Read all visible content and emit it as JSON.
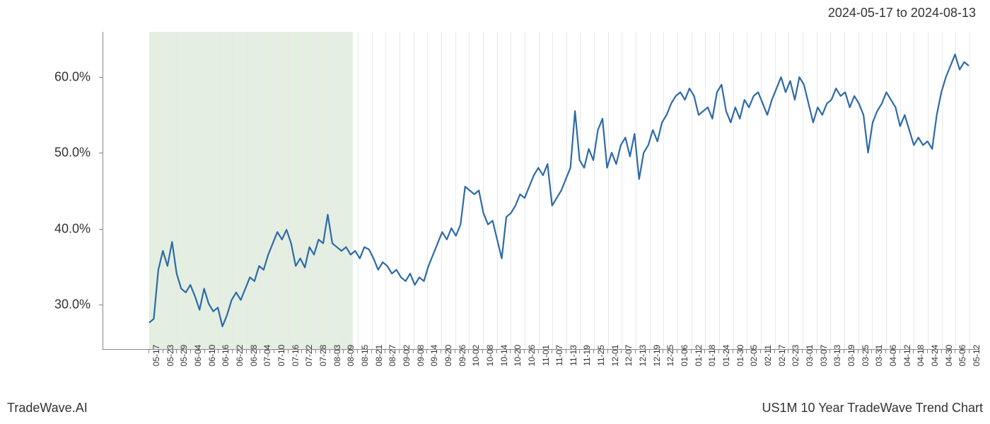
{
  "header": {
    "date_range": "2024-05-17 to 2024-08-13"
  },
  "footer": {
    "left": "TradeWave.AI",
    "right": "US1M 10 Year TradeWave Trend Chart"
  },
  "chart": {
    "type": "line",
    "background_color": "#ffffff",
    "grid_color": "#e8e8e8",
    "axis_color": "#888888",
    "line_color": "#2e6aa8",
    "line_width": 2.2,
    "highlight_band": {
      "color": "#d9e8d4",
      "opacity": 0.7,
      "x_start": "05-17",
      "x_end": "08-13"
    },
    "title_fontsize": 18,
    "tick_fontsize_y": 18,
    "tick_fontsize_x": 12,
    "ylim": [
      24,
      66
    ],
    "yticks": [
      30.0,
      40.0,
      50.0,
      60.0
    ],
    "ytick_labels": [
      "30.0%",
      "40.0%",
      "50.0%",
      "60.0%"
    ],
    "xticks": [
      "05-17",
      "05-23",
      "05-29",
      "06-04",
      "06-10",
      "06-16",
      "06-22",
      "06-28",
      "07-04",
      "07-10",
      "07-16",
      "07-22",
      "07-28",
      "08-03",
      "08-09",
      "08-15",
      "08-21",
      "08-27",
      "09-02",
      "09-08",
      "09-14",
      "09-20",
      "09-26",
      "10-02",
      "10-08",
      "10-14",
      "10-20",
      "10-26",
      "11-01",
      "11-07",
      "11-13",
      "11-19",
      "11-25",
      "12-01",
      "12-07",
      "12-13",
      "12-19",
      "12-25",
      "01-06",
      "01-12",
      "01-18",
      "01-24",
      "01-30",
      "02-05",
      "02-11",
      "02-17",
      "02-23",
      "03-01",
      "03-07",
      "03-13",
      "03-19",
      "03-25",
      "03-31",
      "04-06",
      "04-12",
      "04-18",
      "04-24",
      "04-30",
      "05-06",
      "05-12"
    ],
    "values": [
      27.5,
      28.0,
      34.5,
      37.0,
      35.0,
      38.2,
      34.0,
      32.0,
      31.5,
      32.5,
      31.0,
      29.2,
      32.0,
      30.0,
      29.0,
      29.5,
      27.0,
      28.5,
      30.5,
      31.5,
      30.5,
      32.0,
      33.5,
      33.0,
      35.0,
      34.5,
      36.5,
      38.0,
      39.5,
      38.5,
      39.8,
      38.0,
      35.0,
      36.0,
      34.8,
      37.5,
      36.5,
      38.5,
      38.0,
      41.8,
      38.0,
      37.5,
      37.0,
      37.5,
      36.5,
      37.0,
      36.0,
      37.5,
      37.2,
      36.0,
      34.5,
      35.5,
      35.0,
      34.0,
      34.5,
      33.5,
      33.0,
      34.0,
      32.5,
      33.5,
      33.0,
      35.0,
      36.5,
      38.0,
      39.5,
      38.5,
      40.0,
      39.0,
      40.5,
      45.5,
      45.0,
      44.5,
      45.0,
      42.0,
      40.5,
      41.0,
      38.5,
      36.0,
      41.5,
      42.0,
      43.0,
      44.5,
      44.0,
      45.5,
      47.0,
      48.0,
      47.0,
      48.5,
      43.0,
      44.0,
      45.0,
      46.5,
      48.0,
      55.5,
      49.0,
      48.0,
      50.5,
      49.0,
      53.0,
      54.5,
      48.0,
      50.0,
      48.5,
      51.0,
      52.0,
      49.5,
      52.5,
      46.5,
      50.0,
      51.0,
      53.0,
      51.5,
      54.0,
      55.0,
      56.5,
      57.5,
      58.0,
      57.0,
      58.5,
      57.5,
      55.0,
      55.5,
      56.0,
      54.5,
      58.0,
      59.0,
      55.5,
      54.0,
      56.0,
      54.5,
      57.0,
      56.0,
      57.5,
      58.0,
      56.5,
      55.0,
      57.0,
      58.5,
      60.0,
      58.0,
      59.5,
      57.0,
      60.0,
      59.0,
      56.5,
      54.0,
      56.0,
      55.0,
      56.5,
      57.0,
      58.5,
      57.5,
      58.0,
      56.0,
      57.5,
      56.5,
      55.0,
      50.0,
      54.0,
      55.5,
      56.5,
      58.0,
      57.0,
      56.0,
      53.5,
      55.0,
      53.0,
      51.0,
      52.0,
      51.0,
      51.5,
      50.5,
      55.0,
      58.0,
      60.0,
      61.5,
      63.0,
      61.0,
      62.0,
      61.5
    ]
  }
}
